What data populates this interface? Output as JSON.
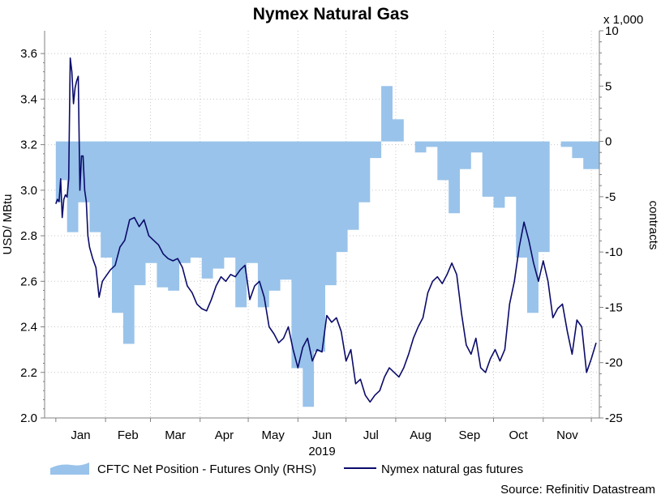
{
  "chart_data": {
    "type": "line",
    "title": "Nymex Natural Gas",
    "year_label": "2019",
    "source": "Source: Refinitiv Datastream",
    "left_axis": {
      "label": "USD/ MBtu",
      "ylim": [
        2.0,
        3.7
      ],
      "ticks": [
        "2.0",
        "2.2",
        "2.4",
        "2.6",
        "2.8",
        "3.0",
        "3.2",
        "3.4",
        "3.6"
      ]
    },
    "right_axis": {
      "label": "contracts",
      "multiplier": "x 1,000",
      "ylim": [
        -25,
        10
      ],
      "ticks": [
        "10",
        "5",
        "0",
        "-5",
        "-10",
        "-15",
        "-20",
        "-25"
      ]
    },
    "x_axis": {
      "categories": [
        "Jan",
        "Feb",
        "Mar",
        "Apr",
        "May",
        "Jun",
        "Jul",
        "Aug",
        "Sep",
        "Oct",
        "Nov"
      ]
    },
    "legend": {
      "placement": "bottom",
      "entries": [
        "CFTC Net Position - Futures Only (RHS)",
        "Nymex natural gas futures"
      ]
    },
    "colors": {
      "area": "#99c3ea",
      "line": "#0b0b6a",
      "grid": "#bdbdbd"
    },
    "series": [
      {
        "name": "CFTC Net Position - Futures Only (RHS)",
        "kind": "area",
        "axis": "right",
        "x": [
          "2019-01-01",
          "2019-01-04",
          "2019-01-08",
          "2019-01-15",
          "2019-01-22",
          "2019-01-29",
          "2019-02-05",
          "2019-02-12",
          "2019-02-19",
          "2019-02-26",
          "2019-03-05",
          "2019-03-12",
          "2019-03-19",
          "2019-03-26",
          "2019-04-02",
          "2019-04-09",
          "2019-04-16",
          "2019-04-23",
          "2019-04-30",
          "2019-05-07",
          "2019-05-14",
          "2019-05-21",
          "2019-05-28",
          "2019-06-04",
          "2019-06-11",
          "2019-06-18",
          "2019-06-25",
          "2019-07-02",
          "2019-07-09",
          "2019-07-16",
          "2019-07-23",
          "2019-07-30",
          "2019-08-06",
          "2019-08-13",
          "2019-08-20",
          "2019-08-27",
          "2019-09-03",
          "2019-09-10",
          "2019-09-17",
          "2019-09-24",
          "2019-10-01",
          "2019-10-08",
          "2019-10-15",
          "2019-10-22",
          "2019-10-29",
          "2019-11-05",
          "2019-11-12",
          "2019-11-19",
          "2019-11-26",
          "2019-12-03"
        ],
        "values": [
          -5.5,
          -3.5,
          -8.2,
          -5.5,
          -8.2,
          -10.5,
          -15.5,
          -18.3,
          -13,
          -11,
          -13.2,
          -13.5,
          -11,
          -10.5,
          -12.4,
          -11.5,
          -10.5,
          -15,
          -11,
          -15,
          -13.5,
          -12.5,
          -20.5,
          -24,
          -19,
          -13,
          -10,
          -8,
          -5.5,
          -1.5,
          5,
          2,
          0,
          -1,
          -0.5,
          -3.5,
          -6.5,
          -2.5,
          -1,
          -5,
          -6,
          -5,
          -10.5,
          -15.5,
          -10,
          0,
          -0.5,
          -1.5,
          -2.5,
          -2.5
        ]
      },
      {
        "name": "Nymex natural gas futures",
        "kind": "line",
        "axis": "left",
        "x": [
          "2019-01-01",
          "2019-01-02",
          "2019-01-03",
          "2019-01-04",
          "2019-01-05",
          "2019-01-06",
          "2019-01-07",
          "2019-01-08",
          "2019-01-09",
          "2019-01-10",
          "2019-01-11",
          "2019-01-12",
          "2019-01-13",
          "2019-01-14",
          "2019-01-15",
          "2019-01-16",
          "2019-01-17",
          "2019-01-18",
          "2019-01-19",
          "2019-01-20",
          "2019-01-21",
          "2019-01-22",
          "2019-01-24",
          "2019-01-26",
          "2019-01-28",
          "2019-01-30",
          "2019-02-01",
          "2019-02-04",
          "2019-02-07",
          "2019-02-10",
          "2019-02-13",
          "2019-02-16",
          "2019-02-19",
          "2019-02-22",
          "2019-02-25",
          "2019-02-28",
          "2019-03-03",
          "2019-03-06",
          "2019-03-09",
          "2019-03-12",
          "2019-03-15",
          "2019-03-18",
          "2019-03-21",
          "2019-03-24",
          "2019-03-27",
          "2019-03-30",
          "2019-04-02",
          "2019-04-05",
          "2019-04-08",
          "2019-04-11",
          "2019-04-14",
          "2019-04-17",
          "2019-04-20",
          "2019-04-23",
          "2019-04-26",
          "2019-04-29",
          "2019-05-02",
          "2019-05-05",
          "2019-05-08",
          "2019-05-11",
          "2019-05-14",
          "2019-05-17",
          "2019-05-20",
          "2019-05-23",
          "2019-05-26",
          "2019-05-29",
          "2019-06-01",
          "2019-06-04",
          "2019-06-07",
          "2019-06-10",
          "2019-06-13",
          "2019-06-16",
          "2019-06-19",
          "2019-06-22",
          "2019-06-25",
          "2019-06-28",
          "2019-07-01",
          "2019-07-04",
          "2019-07-07",
          "2019-07-10",
          "2019-07-13",
          "2019-07-16",
          "2019-07-19",
          "2019-07-22",
          "2019-07-25",
          "2019-07-28",
          "2019-07-31",
          "2019-08-03",
          "2019-08-06",
          "2019-08-09",
          "2019-08-12",
          "2019-08-15",
          "2019-08-18",
          "2019-08-21",
          "2019-08-24",
          "2019-08-27",
          "2019-08-30",
          "2019-09-02",
          "2019-09-05",
          "2019-09-08",
          "2019-09-11",
          "2019-09-14",
          "2019-09-17",
          "2019-09-20",
          "2019-09-23",
          "2019-09-26",
          "2019-09-29",
          "2019-10-02",
          "2019-10-05",
          "2019-10-08",
          "2019-10-11",
          "2019-10-14",
          "2019-10-17",
          "2019-10-20",
          "2019-10-23",
          "2019-10-26",
          "2019-10-29",
          "2019-11-01",
          "2019-11-04",
          "2019-11-07",
          "2019-11-10",
          "2019-11-13",
          "2019-11-16",
          "2019-11-19",
          "2019-11-22",
          "2019-11-25",
          "2019-11-28",
          "2019-12-01",
          "2019-12-04"
        ],
        "values": [
          2.94,
          2.96,
          2.95,
          3.05,
          2.88,
          2.96,
          2.98,
          2.97,
          3.05,
          3.58,
          3.52,
          3.38,
          3.45,
          3.48,
          3.5,
          3.0,
          3.15,
          3.15,
          3.0,
          2.95,
          2.8,
          2.75,
          2.7,
          2.66,
          2.53,
          2.6,
          2.62,
          2.65,
          2.67,
          2.75,
          2.78,
          2.87,
          2.88,
          2.84,
          2.87,
          2.8,
          2.78,
          2.76,
          2.72,
          2.7,
          2.69,
          2.7,
          2.66,
          2.58,
          2.55,
          2.5,
          2.48,
          2.47,
          2.52,
          2.58,
          2.62,
          2.6,
          2.63,
          2.62,
          2.65,
          2.67,
          2.52,
          2.58,
          2.6,
          2.53,
          2.4,
          2.37,
          2.33,
          2.35,
          2.4,
          2.3,
          2.22,
          2.31,
          2.35,
          2.25,
          2.3,
          2.29,
          2.45,
          2.42,
          2.44,
          2.38,
          2.25,
          2.3,
          2.15,
          2.17,
          2.1,
          2.07,
          2.1,
          2.12,
          2.18,
          2.22,
          2.2,
          2.18,
          2.22,
          2.28,
          2.35,
          2.4,
          2.44,
          2.55,
          2.6,
          2.62,
          2.59,
          2.63,
          2.68,
          2.63,
          2.46,
          2.32,
          2.28,
          2.35,
          2.22,
          2.2,
          2.26,
          2.3,
          2.25,
          2.3,
          2.5,
          2.6,
          2.75,
          2.86,
          2.78,
          2.68,
          2.6,
          2.69,
          2.6,
          2.44,
          2.48,
          2.5,
          2.38,
          2.28,
          2.43,
          2.4,
          2.2,
          2.26,
          2.33
        ]
      }
    ]
  }
}
